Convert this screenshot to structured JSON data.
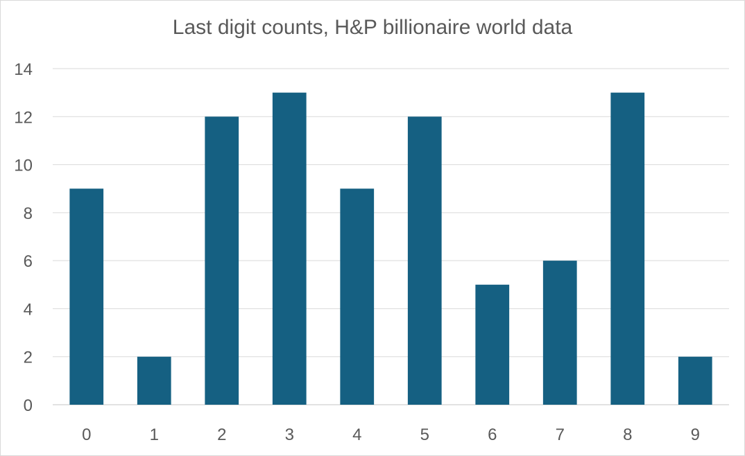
{
  "chart_data": {
    "type": "bar",
    "title": "Last digit counts, H&P billionaire world data",
    "categories": [
      "0",
      "1",
      "2",
      "3",
      "4",
      "5",
      "6",
      "7",
      "8",
      "9"
    ],
    "series": [
      {
        "values": [
          9,
          2,
          12,
          13,
          9,
          12,
          5,
          6,
          13,
          2
        ]
      }
    ],
    "xlabel": "",
    "ylabel": "",
    "ylim": [
      0,
      14
    ],
    "yticks": [
      0,
      2,
      4,
      6,
      8,
      10,
      12,
      14
    ],
    "grid": true,
    "legend": "none",
    "colors": {
      "bar": "#156082",
      "grid": "#d9d9d9",
      "text": "#595959"
    }
  }
}
